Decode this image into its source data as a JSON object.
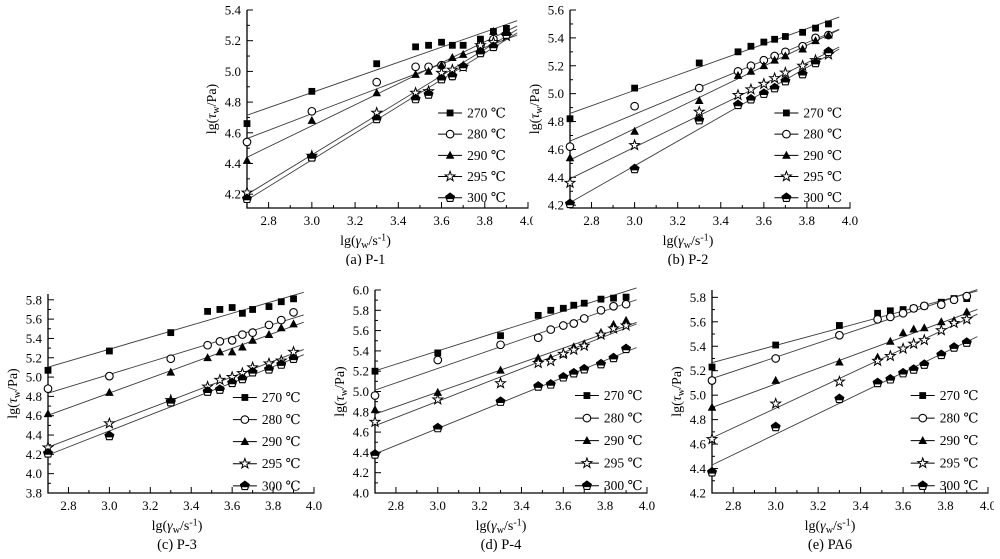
{
  "figure": {
    "description": "Flow curves lg(shear stress) vs lg(shear rate) at five temperatures for five samples",
    "temperature_series": [
      "270 ℃",
      "280 ℃",
      "290 ℃",
      "295 ℃",
      "300 ℃"
    ],
    "marker_names": [
      "filled-square-marker",
      "open-circle-marker",
      "filled-triangle-marker",
      "open-star-marker",
      "half-filled-pentagon-marker"
    ],
    "line_color": "#3c3c3c",
    "axis_color": "#000000"
  },
  "chart_data": [
    {
      "type": "scatter",
      "caption": "(a) P-1",
      "xlabel_parts": [
        {
          "t": "lg("
        },
        {
          "t": "γ",
          "i": true
        },
        {
          "t": "w",
          "sub": true
        },
        {
          "t": "/s"
        },
        {
          "t": "-1",
          "sup": true
        },
        {
          "t": ")"
        }
      ],
      "ylabel_parts": [
        {
          "t": "lg("
        },
        {
          "t": "τ",
          "i": true
        },
        {
          "t": "w",
          "sub": true
        },
        {
          "t": "/Pa)"
        }
      ],
      "xlim": [
        2.7,
        4.0
      ],
      "ylim": [
        4.11,
        5.4
      ],
      "xticks": [
        2.8,
        3.0,
        3.2,
        3.4,
        3.6,
        3.8,
        4.0
      ],
      "yticks": [
        4.2,
        4.4,
        4.6,
        4.8,
        5.0,
        5.2,
        5.4
      ],
      "minor_step": 0.1,
      "fit_line_x_end": 3.95,
      "x": [
        2.7,
        3.0,
        3.3,
        3.48,
        3.54,
        3.6,
        3.65,
        3.7,
        3.78,
        3.84,
        3.9
      ],
      "series": [
        {
          "name": "270 ℃",
          "marker": "square-filled",
          "values": [
            4.66,
            4.87,
            5.05,
            5.16,
            5.17,
            5.19,
            5.17,
            5.17,
            5.21,
            5.26,
            5.28
          ]
        },
        {
          "name": "280 ℃",
          "marker": "circle-open",
          "values": [
            4.54,
            4.74,
            4.93,
            5.03,
            5.03,
            5.04,
            4.97,
            5.03,
            5.17,
            5.21,
            5.24
          ]
        },
        {
          "name": "290 ℃",
          "marker": "triangle-filled",
          "values": [
            4.42,
            4.68,
            4.86,
            4.98,
            5.0,
            5.04,
            5.09,
            5.11,
            5.15,
            5.26,
            5.27
          ]
        },
        {
          "name": "295 ℃",
          "marker": "star-open",
          "values": [
            4.21,
            4.45,
            4.73,
            4.86,
            4.87,
            4.99,
            5.01,
            5.03,
            5.17,
            5.19,
            5.23
          ]
        },
        {
          "name": "300 ℃",
          "marker": "pentagon-half",
          "values": [
            4.17,
            4.44,
            4.69,
            4.82,
            4.85,
            4.95,
            4.97,
            5.03,
            5.12,
            5.16,
            5.24
          ]
        }
      ]
    },
    {
      "type": "scatter",
      "caption": "(b) P-2",
      "xlabel_parts": [
        {
          "t": "lg("
        },
        {
          "t": "γ",
          "i": true
        },
        {
          "t": "w",
          "sub": true
        },
        {
          "t": "/s"
        },
        {
          "t": "-1",
          "sup": true
        },
        {
          "t": ")"
        }
      ],
      "ylabel_parts": [
        {
          "t": "lg("
        },
        {
          "t": "τ",
          "i": true
        },
        {
          "t": "w",
          "sub": true
        },
        {
          "t": "/Pa)"
        }
      ],
      "xlim": [
        2.7,
        4.0
      ],
      "ylim": [
        4.18,
        5.6
      ],
      "xticks": [
        2.8,
        3.0,
        3.2,
        3.4,
        3.6,
        3.8,
        4.0
      ],
      "yticks": [
        4.2,
        4.4,
        4.6,
        4.8,
        5.0,
        5.2,
        5.4,
        5.6
      ],
      "minor_step": 0.1,
      "fit_line_x_end": 3.95,
      "x": [
        2.7,
        3.0,
        3.3,
        3.48,
        3.54,
        3.6,
        3.65,
        3.7,
        3.78,
        3.84,
        3.9
      ],
      "series": [
        {
          "name": "270 ℃",
          "marker": "square-filled",
          "values": [
            4.82,
            5.04,
            5.22,
            5.3,
            5.34,
            5.37,
            5.39,
            5.41,
            5.44,
            5.47,
            5.5
          ]
        },
        {
          "name": "280 ℃",
          "marker": "circle-open",
          "values": [
            4.62,
            4.91,
            5.04,
            5.16,
            5.2,
            5.24,
            5.27,
            5.3,
            5.34,
            5.4,
            5.42
          ]
        },
        {
          "name": "290 ℃",
          "marker": "triangle-filled",
          "values": [
            4.54,
            4.73,
            4.95,
            5.13,
            5.16,
            5.2,
            5.24,
            5.27,
            5.32,
            5.38,
            5.42
          ]
        },
        {
          "name": "295 ℃",
          "marker": "star-open",
          "values": [
            4.36,
            4.63,
            4.87,
            4.99,
            5.03,
            5.07,
            5.11,
            5.15,
            5.2,
            5.24,
            5.28
          ]
        },
        {
          "name": "300 ℃",
          "marker": "pentagon-half",
          "values": [
            4.21,
            4.46,
            4.81,
            4.92,
            4.96,
            5.0,
            5.04,
            5.09,
            5.14,
            5.22,
            5.3
          ]
        }
      ]
    },
    {
      "type": "scatter",
      "caption": "(c) P-3",
      "xlabel_parts": [
        {
          "t": "lg("
        },
        {
          "t": "γ",
          "i": true
        },
        {
          "t": "w",
          "sub": true
        },
        {
          "t": "/s"
        },
        {
          "t": "-1",
          "sup": true
        },
        {
          "t": ")"
        }
      ],
      "ylabel_parts": [
        {
          "t": "lg("
        },
        {
          "t": "τ",
          "i": true
        },
        {
          "t": "w",
          "sub": true
        },
        {
          "t": "/Pa)"
        }
      ],
      "xlim": [
        2.7,
        4.0
      ],
      "ylim": [
        3.8,
        5.86
      ],
      "xticks": [
        2.8,
        3.0,
        3.2,
        3.4,
        3.6,
        3.8,
        4.0
      ],
      "yticks": [
        3.8,
        4.0,
        4.2,
        4.4,
        4.6,
        4.8,
        5.0,
        5.2,
        5.4,
        5.6,
        5.8
      ],
      "minor_step": 0.1,
      "fit_line_x_end": 3.95,
      "x": [
        2.7,
        3.0,
        3.3,
        3.48,
        3.54,
        3.6,
        3.65,
        3.7,
        3.78,
        3.84,
        3.9
      ],
      "series": [
        {
          "name": "270 ℃",
          "marker": "square-filled",
          "values": [
            5.07,
            5.27,
            5.46,
            5.68,
            5.7,
            5.72,
            5.66,
            5.7,
            5.73,
            5.78,
            5.81
          ]
        },
        {
          "name": "280 ℃",
          "marker": "circle-open",
          "values": [
            4.88,
            5.01,
            5.19,
            5.33,
            5.37,
            5.38,
            5.44,
            5.46,
            5.54,
            5.59,
            5.67
          ]
        },
        {
          "name": "290 ℃",
          "marker": "triangle-filled",
          "values": [
            4.62,
            4.84,
            5.05,
            5.2,
            5.26,
            5.26,
            5.31,
            5.38,
            5.44,
            5.51,
            5.55
          ]
        },
        {
          "name": "295 ℃",
          "marker": "star-open",
          "values": [
            4.27,
            4.52,
            4.76,
            4.9,
            4.97,
            5.0,
            5.04,
            5.1,
            5.14,
            5.17,
            5.26
          ]
        },
        {
          "name": "300 ℃",
          "marker": "pentagon-half",
          "values": [
            4.21,
            4.39,
            4.74,
            4.85,
            4.87,
            4.94,
            4.98,
            5.05,
            5.08,
            5.13,
            5.19
          ]
        }
      ]
    },
    {
      "type": "scatter",
      "caption": "(d) P-4",
      "xlabel_parts": [
        {
          "t": "lg("
        },
        {
          "t": "γ",
          "i": true
        },
        {
          "t": "w",
          "sub": true
        },
        {
          "t": "/s"
        },
        {
          "t": "-1",
          "sup": true
        },
        {
          "t": ")"
        }
      ],
      "ylabel_parts": [
        {
          "t": "lg("
        },
        {
          "t": "τ",
          "i": true
        },
        {
          "t": "w",
          "sub": true
        },
        {
          "t": "/Pa)"
        }
      ],
      "xlim": [
        2.7,
        4.0
      ],
      "ylim": [
        4.0,
        6.0
      ],
      "xticks": [
        2.8,
        3.0,
        3.2,
        3.4,
        3.6,
        3.8,
        4.0
      ],
      "yticks": [
        4.0,
        4.2,
        4.4,
        4.6,
        4.8,
        5.0,
        5.2,
        5.4,
        5.6,
        5.8,
        6.0
      ],
      "minor_step": 0.1,
      "fit_line_x_end": 3.95,
      "x": [
        2.7,
        3.0,
        3.3,
        3.48,
        3.54,
        3.6,
        3.65,
        3.7,
        3.78,
        3.84,
        3.9
      ],
      "series": [
        {
          "name": "270 ℃",
          "marker": "square-filled",
          "values": [
            5.2,
            5.38,
            5.55,
            5.75,
            5.8,
            5.82,
            5.85,
            5.87,
            5.91,
            5.92,
            5.93
          ]
        },
        {
          "name": "280 ℃",
          "marker": "circle-open",
          "values": [
            4.96,
            5.31,
            5.46,
            5.53,
            5.61,
            5.65,
            5.67,
            5.72,
            5.8,
            5.84,
            5.86
          ]
        },
        {
          "name": "290 ℃",
          "marker": "triangle-filled",
          "values": [
            4.82,
            4.99,
            5.21,
            5.33,
            5.33,
            5.37,
            5.44,
            5.47,
            5.58,
            5.66,
            5.7
          ]
        },
        {
          "name": "295 ℃",
          "marker": "star-open",
          "values": [
            4.7,
            4.92,
            5.08,
            5.28,
            5.3,
            5.37,
            5.41,
            5.45,
            5.56,
            5.62,
            5.65
          ]
        },
        {
          "name": "300 ℃",
          "marker": "pentagon-half",
          "values": [
            4.38,
            4.64,
            4.9,
            5.05,
            5.07,
            5.14,
            5.18,
            5.22,
            5.27,
            5.33,
            5.42
          ]
        }
      ]
    },
    {
      "type": "scatter",
      "caption": "(e) PA6",
      "xlabel_parts": [
        {
          "t": "lg("
        },
        {
          "t": "γ",
          "i": true
        },
        {
          "t": "w",
          "sub": true
        },
        {
          "t": "/s"
        },
        {
          "t": "-1",
          "sup": true
        },
        {
          "t": ")"
        }
      ],
      "ylabel_parts": [
        {
          "t": "lg("
        },
        {
          "t": "τ",
          "i": true
        },
        {
          "t": "w",
          "sub": true
        },
        {
          "t": "/Pa)"
        }
      ],
      "xlim": [
        2.7,
        4.0
      ],
      "ylim": [
        4.2,
        5.86
      ],
      "xticks": [
        2.8,
        3.0,
        3.2,
        3.4,
        3.6,
        3.8,
        4.0
      ],
      "yticks": [
        4.2,
        4.4,
        4.6,
        4.8,
        5.0,
        5.2,
        5.4,
        5.6,
        5.8
      ],
      "minor_step": 0.1,
      "fit_line_x_end": 3.95,
      "x": [
        2.7,
        3.0,
        3.3,
        3.48,
        3.54,
        3.6,
        3.65,
        3.7,
        3.78,
        3.84,
        3.9
      ],
      "series": [
        {
          "name": "270 ℃",
          "marker": "square-filled",
          "values": [
            5.23,
            5.41,
            5.57,
            5.67,
            5.69,
            5.7,
            5.71,
            5.73,
            5.76,
            5.79,
            5.79
          ]
        },
        {
          "name": "280 ℃",
          "marker": "circle-open",
          "values": [
            5.12,
            5.3,
            5.49,
            5.62,
            5.64,
            5.67,
            5.71,
            5.73,
            5.74,
            5.78,
            5.81
          ]
        },
        {
          "name": "290 ℃",
          "marker": "triangle-filled",
          "values": [
            4.9,
            5.12,
            5.27,
            5.31,
            5.44,
            5.51,
            5.54,
            5.55,
            5.6,
            5.61,
            5.68
          ]
        },
        {
          "name": "295 ℃",
          "marker": "star-open",
          "values": [
            4.64,
            4.93,
            5.11,
            5.28,
            5.32,
            5.38,
            5.42,
            5.45,
            5.53,
            5.59,
            5.62
          ]
        },
        {
          "name": "300 ℃",
          "marker": "pentagon-half",
          "values": [
            4.37,
            4.74,
            4.97,
            5.1,
            5.13,
            5.18,
            5.21,
            5.25,
            5.33,
            5.39,
            5.43
          ]
        }
      ]
    }
  ]
}
